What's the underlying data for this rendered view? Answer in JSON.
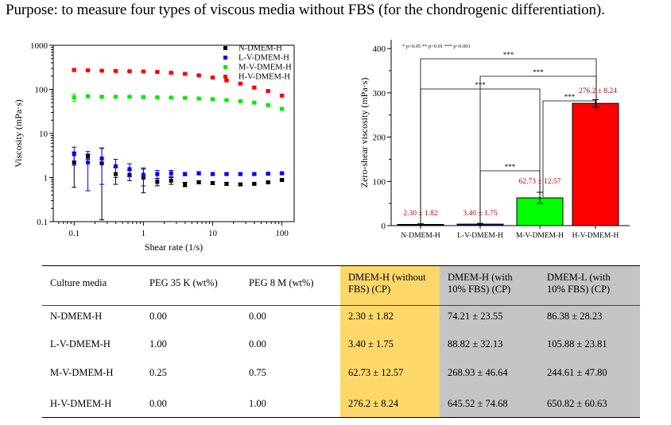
{
  "title": "Purpose: to measure four types of viscous media without FBS (for the chondrogenic differentiation).",
  "chart_data": [
    {
      "type": "scatter",
      "xscale": "log",
      "yscale": "log",
      "xlim": [
        0.05,
        150
      ],
      "ylim": [
        0.1,
        1000
      ],
      "xlabel": "Shear rate (1/s)",
      "ylabel": "Viscosity (mPa·s)",
      "xticks": [
        "0.1",
        "1",
        "10",
        "100"
      ],
      "yticks": [
        "0.1",
        "1",
        "10",
        "100",
        "1000"
      ],
      "legend_position": "top-right",
      "series": [
        {
          "name": "N-DMEM-H",
          "color": "#000000",
          "x": [
            0.1,
            0.158,
            0.251,
            0.398,
            0.631,
            1.0,
            1.585,
            2.512,
            3.981,
            6.31,
            10,
            15.85,
            25.12,
            39.81,
            63.1,
            100
          ],
          "y": [
            2.2,
            3.0,
            2.1,
            1.2,
            1.15,
            1.0,
            0.8,
            0.85,
            0.7,
            0.78,
            0.75,
            0.72,
            0.7,
            0.72,
            0.78,
            0.88
          ],
          "err": [
            1.6,
            0.4,
            2.5,
            0.5,
            0.3,
            0.55,
            0.15,
            0.15,
            0.08,
            0.06,
            0.05,
            0.05,
            0.04,
            0.04,
            0.04,
            0.05
          ]
        },
        {
          "name": "L-V-DMEM-H",
          "color": "#0000ff",
          "x": [
            0.1,
            0.158,
            0.251,
            0.398,
            0.631,
            1.0,
            1.585,
            2.512,
            3.981,
            6.31,
            10,
            15.85,
            25.12,
            39.81,
            63.1,
            100
          ],
          "y": [
            3.4,
            2.2,
            2.7,
            1.8,
            1.55,
            1.15,
            1.2,
            1.25,
            1.2,
            1.25,
            1.2,
            1.2,
            1.2,
            1.2,
            1.22,
            1.25
          ],
          "err": [
            1.5,
            1.7,
            2.0,
            0.8,
            0.5,
            0.5,
            0.25,
            0.2,
            0.1,
            0.1,
            0.06,
            0.06,
            0.06,
            0.06,
            0.06,
            0.06
          ]
        },
        {
          "name": "M-V-DMEM-H",
          "color": "#00ee00",
          "x": [
            0.1,
            0.158,
            0.251,
            0.398,
            0.631,
            1.0,
            1.585,
            2.512,
            3.981,
            6.31,
            10,
            15.85,
            25.12,
            39.81,
            63.1,
            100
          ],
          "y": [
            65,
            70,
            68,
            68,
            68,
            67,
            66,
            65,
            64,
            62,
            60,
            57,
            54,
            50,
            44,
            36
          ],
          "err": [
            12,
            5,
            3,
            2,
            2,
            2,
            2,
            2,
            2,
            2,
            2,
            2,
            2,
            2,
            2,
            2
          ]
        },
        {
          "name": "H-V-DMEM-H",
          "color": "#ff0000",
          "x": [
            0.1,
            0.158,
            0.251,
            0.398,
            0.631,
            1.0,
            1.585,
            2.512,
            3.981,
            6.31,
            10,
            15.85,
            25.12,
            39.81,
            63.1,
            100
          ],
          "y": [
            275,
            270,
            265,
            262,
            258,
            255,
            248,
            238,
            225,
            208,
            185,
            160,
            135,
            110,
            92,
            72
          ],
          "err": [
            15,
            8,
            6,
            5,
            5,
            5,
            5,
            5,
            5,
            5,
            5,
            5,
            5,
            5,
            5,
            5
          ]
        }
      ]
    },
    {
      "type": "bar",
      "categories": [
        "N-DMEM-H",
        "L-V-DMEM-H",
        "M-V-DMEM-H",
        "H-V-DMEM-H"
      ],
      "values": [
        2.3,
        3.4,
        62.73,
        276.2
      ],
      "errors": [
        1.82,
        1.75,
        12.57,
        8.24
      ],
      "value_labels": [
        "2.30 ± 1.82",
        "3.40 ± 1.75",
        "62.73 ± 12.57",
        "276.2 ± 8.24"
      ],
      "colors": [
        "#000000",
        "#1a1a8c",
        "#00ff00",
        "#ff0000"
      ],
      "ylabel": "Zero-shear viscosity (mPa·s)",
      "ylim": [
        0,
        420
      ],
      "yticks": [
        "0",
        "100",
        "200",
        "300",
        "400"
      ],
      "significance_legend": "* p<0.05   ** p<0.01   *** p<0.001",
      "significance": [
        {
          "from": "N-DMEM-H",
          "to": "H-V-DMEM-H",
          "label": "***"
        },
        {
          "from": "L-V-DMEM-H",
          "to": "H-V-DMEM-H",
          "label": "***"
        },
        {
          "from": "N-DMEM-H",
          "to": "M-V-DMEM-H",
          "label": "***"
        },
        {
          "from": "M-V-DMEM-H",
          "to": "H-V-DMEM-H",
          "label": "***"
        },
        {
          "from": "L-V-DMEM-H",
          "to": "M-V-DMEM-H",
          "label": "***"
        }
      ]
    },
    {
      "type": "table",
      "columns": [
        "Culture media",
        "PEG 35 K (wt%)",
        "PEG 8 M (wt%)",
        "DMEM-H (without FBS) (CP)",
        "DMEM-H (with 10% FBS) (CP)",
        "DMEM-L (with 10% FBS) (CP)"
      ],
      "rows": [
        [
          "N-DMEM-H",
          "0.00",
          "0.00",
          "2.30 ± 1.82",
          "74.21 ± 23.55",
          "86.38 ± 28.23"
        ],
        [
          "L-V-DMEM-H",
          "1.00",
          "0.00",
          "3.40 ± 1.75",
          "88.82 ± 32.13",
          "105.88 ± 23.81"
        ],
        [
          "M-V-DMEM-H",
          "0.25",
          "0.75",
          "62.73 ± 12.57",
          "268.93 ± 46.64",
          "244.61 ± 47.80"
        ],
        [
          "H-V-DMEM-H",
          "0.00",
          "1.00",
          "276.2 ± 8.24",
          "645.52 ± 74.68",
          "650.82 ± 60.63"
        ]
      ],
      "highlight_colors": {
        "col4": "#fcd86b",
        "col5_6": "#c4c4c4"
      }
    }
  ]
}
